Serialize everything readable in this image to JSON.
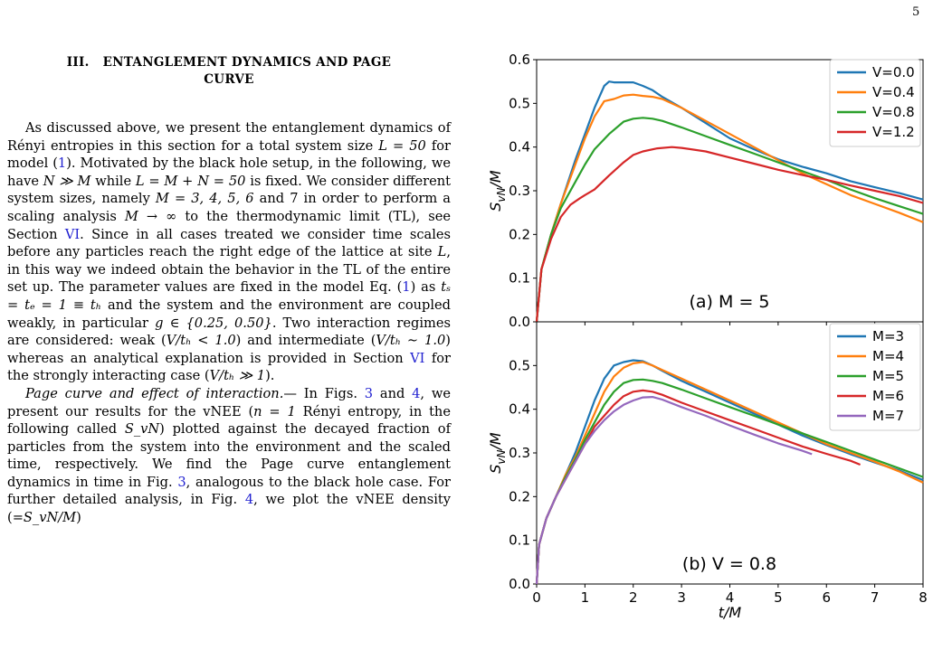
{
  "page_number": "5",
  "section": {
    "title_line1": "III.   ENTANGLEMENT DYNAMICS AND PAGE",
    "title_line2": "CURVE",
    "para1": [
      {
        "t": "As discussed above, we present the entanglement dynamics of Rényi entropies in this section for a total system size "
      },
      {
        "t": "L = 50",
        "m": 1
      },
      {
        "t": " for model ("
      },
      {
        "t": "1",
        "l": 1
      },
      {
        "t": "). Motivated by the black hole setup, in the following, we have "
      },
      {
        "t": "N ≫ M",
        "m": 1
      },
      {
        "t": " while "
      },
      {
        "t": "L = M + N = 50",
        "m": 1
      },
      {
        "t": " is fixed. We consider different system sizes, namely "
      },
      {
        "t": "M = 3, 4, 5, 6",
        "m": 1
      },
      {
        "t": " and 7 in order to perform a scaling analysis "
      },
      {
        "t": "M → ∞",
        "m": 1
      },
      {
        "t": " to the thermodynamic limit (TL), see Section "
      },
      {
        "t": "VI",
        "l": 1
      },
      {
        "t": ". Since in all cases treated we consider time scales before any particles reach the right edge of the lattice at site "
      },
      {
        "t": "L",
        "m": 1
      },
      {
        "t": ", in this way we indeed obtain the behavior in the TL of the entire set up. The parameter values are fixed in the model Eq. ("
      },
      {
        "t": "1",
        "l": 1
      },
      {
        "t": ") as "
      },
      {
        "t": "tₛ = tₑ = 1 ≡ tₕ",
        "m": 1
      },
      {
        "t": " and the system and the environment are coupled weakly, in particular "
      },
      {
        "t": "g ∈ {0.25, 0.50}",
        "m": 1
      },
      {
        "t": ". Two interaction regimes are considered: weak ("
      },
      {
        "t": "V/tₕ < 1.0",
        "m": 1
      },
      {
        "t": ") and intermediate ("
      },
      {
        "t": "V/tₕ ∼ 1.0",
        "m": 1
      },
      {
        "t": ") whereas an analytical explanation is provided in Section "
      },
      {
        "t": "VI",
        "l": 1
      },
      {
        "t": " for the strongly interacting case ("
      },
      {
        "t": "V/tₕ ≫ 1",
        "m": 1
      },
      {
        "t": ")."
      }
    ],
    "para2": [
      {
        "t": "Page curve and effect of interaction.",
        "m": 1
      },
      {
        "t": "— In Figs. "
      },
      {
        "t": "3",
        "l": 1
      },
      {
        "t": " and "
      },
      {
        "t": "4",
        "l": 1
      },
      {
        "t": ", we present our results for the vNEE ("
      },
      {
        "t": "n = 1",
        "m": 1
      },
      {
        "t": " Rényi entropy, in the following called "
      },
      {
        "t": "S_vN",
        "m": 1
      },
      {
        "t": ") plotted against the decayed fraction of particles from the system into the environment and the scaled time, respectively. We find the Page curve entanglement dynamics in time in Fig. "
      },
      {
        "t": "3",
        "l": 1
      },
      {
        "t": ", analogous to the black hole case. For further detailed analysis, in Fig. "
      },
      {
        "t": "4",
        "l": 1
      },
      {
        "t": ", we plot the vNEE density (="
      },
      {
        "t": "S_vN/M",
        "m": 1
      },
      {
        "t": ")"
      }
    ]
  },
  "chart_data": [
    {
      "type": "line",
      "panel_label": "(a) M = 5",
      "xlabel": "t/M",
      "ylabel": "S_vN/M",
      "xlim": [
        0,
        8
      ],
      "ylim": [
        0,
        0.6
      ],
      "yticks": [
        "0.0",
        "0.1",
        "0.2",
        "0.3",
        "0.4",
        "0.5",
        "0.6"
      ],
      "legend_position": "top-right",
      "series": [
        {
          "name": "V=0.0",
          "color": "#1f77b4",
          "x": [
            0,
            0.1,
            0.3,
            0.5,
            0.8,
            1.0,
            1.2,
            1.4,
            1.5,
            1.6,
            1.8,
            2.0,
            2.2,
            2.4,
            2.6,
            3.0,
            3.5,
            4.0,
            4.5,
            5.0,
            5.5,
            6.0,
            6.5,
            7.0,
            7.5,
            8.0
          ],
          "y": [
            0,
            0.12,
            0.2,
            0.27,
            0.37,
            0.43,
            0.49,
            0.54,
            0.55,
            0.548,
            0.548,
            0.548,
            0.54,
            0.53,
            0.515,
            0.49,
            0.455,
            0.42,
            0.395,
            0.372,
            0.355,
            0.34,
            0.322,
            0.308,
            0.295,
            0.28
          ]
        },
        {
          "name": "V=0.4",
          "color": "#ff7f0e",
          "x": [
            0,
            0.1,
            0.3,
            0.5,
            0.8,
            1.0,
            1.2,
            1.4,
            1.6,
            1.8,
            2.0,
            2.2,
            2.4,
            2.6,
            3.0,
            3.5,
            4.0,
            4.5,
            5.0,
            5.5,
            6.0,
            6.5,
            7.0,
            7.5,
            8.0
          ],
          "y": [
            0,
            0.12,
            0.2,
            0.27,
            0.36,
            0.42,
            0.47,
            0.505,
            0.51,
            0.518,
            0.52,
            0.517,
            0.515,
            0.51,
            0.49,
            0.46,
            0.43,
            0.4,
            0.37,
            0.34,
            0.315,
            0.29,
            0.27,
            0.25,
            0.228
          ]
        },
        {
          "name": "V=0.8",
          "color": "#2ca02c",
          "x": [
            0,
            0.1,
            0.3,
            0.5,
            0.8,
            1.0,
            1.2,
            1.5,
            1.8,
            2.0,
            2.2,
            2.4,
            2.6,
            3.0,
            3.5,
            4.0,
            4.5,
            5.0,
            5.5,
            6.0,
            6.5,
            7.0,
            7.5,
            8.0
          ],
          "y": [
            0,
            0.12,
            0.2,
            0.26,
            0.32,
            0.36,
            0.395,
            0.43,
            0.458,
            0.465,
            0.467,
            0.465,
            0.46,
            0.445,
            0.425,
            0.405,
            0.385,
            0.365,
            0.345,
            0.325,
            0.303,
            0.283,
            0.265,
            0.247
          ]
        },
        {
          "name": "V=1.2",
          "color": "#d62728",
          "x": [
            0,
            0.1,
            0.3,
            0.5,
            0.7,
            0.9,
            1.0,
            1.2,
            1.5,
            1.8,
            2.0,
            2.2,
            2.5,
            2.8,
            3.0,
            3.5,
            4.0,
            4.5,
            5.0,
            5.5,
            6.0,
            6.5,
            7.0,
            7.5,
            8.0
          ],
          "y": [
            0,
            0.12,
            0.19,
            0.24,
            0.268,
            0.283,
            0.29,
            0.303,
            0.335,
            0.365,
            0.382,
            0.39,
            0.397,
            0.4,
            0.398,
            0.39,
            0.376,
            0.362,
            0.348,
            0.336,
            0.325,
            0.312,
            0.3,
            0.288,
            0.272
          ]
        }
      ]
    },
    {
      "type": "line",
      "panel_label": "(b) V = 0.8",
      "xlabel": "t/M",
      "ylabel": "S_vN/M",
      "xlim": [
        0,
        8
      ],
      "ylim": [
        0,
        0.6
      ],
      "xticks": [
        "0",
        "1",
        "2",
        "3",
        "4",
        "5",
        "6",
        "7",
        "8"
      ],
      "yticks": [
        "0.0",
        "0.1",
        "0.2",
        "0.3",
        "0.4",
        "0.5"
      ],
      "legend_position": "top-right",
      "series": [
        {
          "name": "M=3",
          "color": "#1f77b4",
          "x": [
            0,
            0.05,
            0.2,
            0.4,
            0.6,
            0.8,
            1.0,
            1.2,
            1.4,
            1.6,
            1.8,
            2.0,
            2.2,
            2.4,
            2.6,
            3.0,
            3.5,
            4.0,
            4.5,
            5.0,
            5.5,
            6.0,
            6.5,
            7.0,
            7.5,
            8.0
          ],
          "y": [
            0,
            0.09,
            0.15,
            0.2,
            0.25,
            0.3,
            0.36,
            0.42,
            0.47,
            0.5,
            0.508,
            0.512,
            0.51,
            0.5,
            0.488,
            0.465,
            0.44,
            0.415,
            0.39,
            0.365,
            0.34,
            0.318,
            0.297,
            0.278,
            0.26,
            0.238
          ]
        },
        {
          "name": "M=4",
          "color": "#ff7f0e",
          "x": [
            0,
            0.05,
            0.2,
            0.4,
            0.6,
            0.8,
            1.0,
            1.2,
            1.4,
            1.6,
            1.8,
            2.0,
            2.2,
            2.4,
            2.6,
            3.0,
            3.5,
            4.0,
            4.5,
            5.0,
            5.5,
            6.0,
            6.5,
            7.0,
            7.5,
            8.0
          ],
          "y": [
            0,
            0.09,
            0.15,
            0.2,
            0.25,
            0.29,
            0.34,
            0.39,
            0.44,
            0.475,
            0.495,
            0.505,
            0.508,
            0.5,
            0.49,
            0.47,
            0.445,
            0.42,
            0.395,
            0.37,
            0.345,
            0.32,
            0.3,
            0.28,
            0.258,
            0.232
          ]
        },
        {
          "name": "M=5",
          "color": "#2ca02c",
          "x": [
            0,
            0.05,
            0.2,
            0.4,
            0.6,
            0.8,
            1.0,
            1.2,
            1.4,
            1.6,
            1.8,
            2.0,
            2.2,
            2.4,
            2.6,
            3.0,
            3.5,
            4.0,
            4.5,
            5.0,
            5.5,
            6.0,
            6.5,
            7.0,
            7.5,
            8.0
          ],
          "y": [
            0,
            0.09,
            0.15,
            0.2,
            0.245,
            0.285,
            0.33,
            0.37,
            0.41,
            0.44,
            0.46,
            0.467,
            0.468,
            0.465,
            0.46,
            0.445,
            0.425,
            0.405,
            0.385,
            0.365,
            0.345,
            0.325,
            0.305,
            0.285,
            0.265,
            0.245
          ]
        },
        {
          "name": "M=6",
          "color": "#d62728",
          "x": [
            0,
            0.05,
            0.2,
            0.4,
            0.6,
            0.8,
            1.0,
            1.2,
            1.4,
            1.6,
            1.8,
            2.0,
            2.2,
            2.4,
            2.6,
            3.0,
            3.5,
            4.0,
            4.5,
            5.0,
            5.5,
            6.0,
            6.5,
            6.7
          ],
          "y": [
            0,
            0.09,
            0.15,
            0.2,
            0.24,
            0.28,
            0.32,
            0.36,
            0.385,
            0.41,
            0.43,
            0.44,
            0.443,
            0.44,
            0.433,
            0.415,
            0.395,
            0.375,
            0.355,
            0.335,
            0.315,
            0.298,
            0.282,
            0.273
          ]
        },
        {
          "name": "M=7",
          "color": "#9467bd",
          "x": [
            0,
            0.05,
            0.2,
            0.4,
            0.6,
            0.8,
            1.0,
            1.2,
            1.4,
            1.6,
            1.8,
            2.0,
            2.2,
            2.4,
            2.6,
            3.0,
            3.5,
            4.0,
            4.5,
            5.0,
            5.5,
            5.7
          ],
          "y": [
            0,
            0.09,
            0.15,
            0.2,
            0.24,
            0.28,
            0.32,
            0.35,
            0.375,
            0.395,
            0.41,
            0.42,
            0.427,
            0.428,
            0.422,
            0.405,
            0.385,
            0.363,
            0.342,
            0.322,
            0.305,
            0.297
          ]
        }
      ]
    }
  ]
}
